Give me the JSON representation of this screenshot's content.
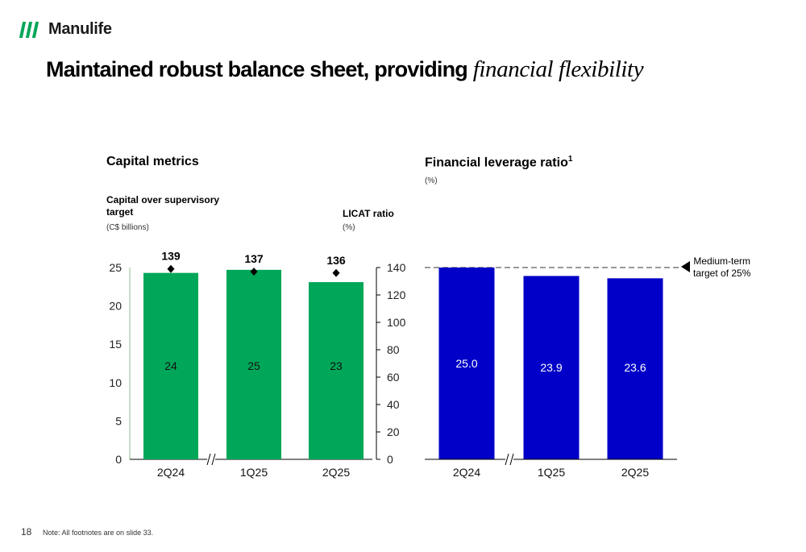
{
  "brand": {
    "name": "Manulife",
    "color": "#00a758"
  },
  "title": {
    "main": "Maintained robust balance sheet, providing",
    "italic": "financial flexibility"
  },
  "colors": {
    "green": "#00a758",
    "blue": "#0000c8",
    "axis": "#8fbf8f"
  },
  "chart_data": [
    {
      "type": "bar",
      "title": "Capital metrics",
      "left_axis_label": "Capital over supervisory target",
      "left_axis_unit": "(C$ billions)",
      "right_axis_label": "LICAT ratio",
      "right_axis_unit": "(%)",
      "categories": [
        "2Q24",
        "1Q25",
        "2Q25"
      ],
      "series": [
        {
          "values": [
            24,
            25,
            23
          ],
          "data_labels": [
            "24",
            "25",
            "23"
          ]
        },
        {
          "values": [
            139,
            137,
            136
          ],
          "marker": "diamond",
          "data_labels": [
            "139",
            "137",
            "136"
          ]
        }
      ],
      "bar_values_precise": [
        24.3,
        24.7,
        23.1
      ],
      "licat_marker_values": [
        139,
        137,
        136
      ],
      "ylim_left": [
        0,
        25
      ],
      "yticks_left": [
        "0",
        "5",
        "10",
        "15",
        "20",
        "25"
      ],
      "ylim_right": [
        0,
        140
      ],
      "yticks_right": [
        "0",
        "20",
        "40",
        "60",
        "80",
        "100",
        "120",
        "140"
      ],
      "axis_break_after_category": 0
    },
    {
      "type": "bar",
      "title": "Financial leverage ratio",
      "title_superscript": "1",
      "unit": "(%)",
      "categories": [
        "2Q24",
        "1Q25",
        "2Q25"
      ],
      "values": [
        25.0,
        23.9,
        23.6
      ],
      "data_labels": [
        "25.0",
        "23.9",
        "23.6"
      ],
      "target_value": 25,
      "target_label": [
        "Medium-term",
        "target of 25%"
      ],
      "axis_break_after_category": 0
    }
  ],
  "footer": {
    "page_number": "18",
    "note": "Note: All footnotes are on slide 33."
  }
}
